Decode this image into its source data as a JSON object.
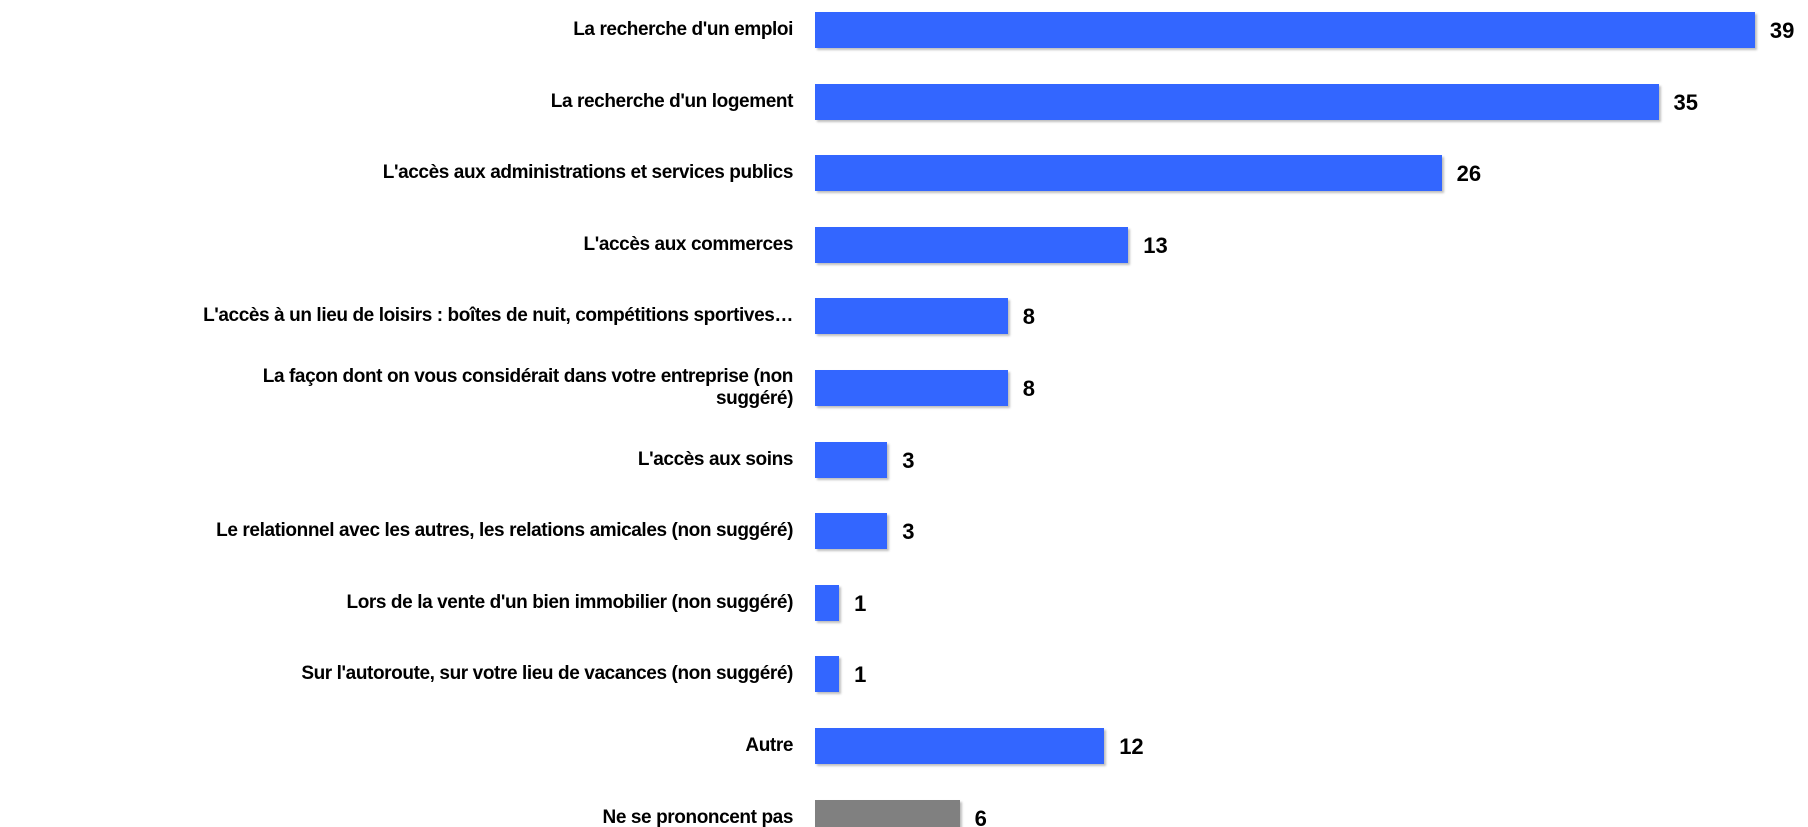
{
  "chart_data": {
    "type": "barh",
    "categories": [
      "La recherche d'un emploi",
      "La recherche d'un logement",
      "L'accès aux administrations et services publics",
      "L'accès aux commerces",
      "L'accès à un lieu de loisirs : boîtes de nuit, compétitions sportives…",
      "La façon dont on vous considérait dans votre entreprise (non\nsuggéré)",
      "L'accès aux soins",
      "Le relationnel avec les autres, les relations amicales (non suggéré)",
      "Lors de la vente d'un bien immobilier (non suggéré)",
      "Sur l'autoroute, sur votre lieu de vacances (non suggéré)",
      "Autre",
      "Ne se prononcent pas"
    ],
    "values": [
      39,
      35,
      26,
      13,
      8,
      8,
      3,
      3,
      1,
      1,
      12,
      6
    ],
    "colors": [
      "#3366ff",
      "#3366ff",
      "#3366ff",
      "#3366ff",
      "#3366ff",
      "#3366ff",
      "#3366ff",
      "#3366ff",
      "#3366ff",
      "#3366ff",
      "#3366ff",
      "#808080"
    ]
  }
}
